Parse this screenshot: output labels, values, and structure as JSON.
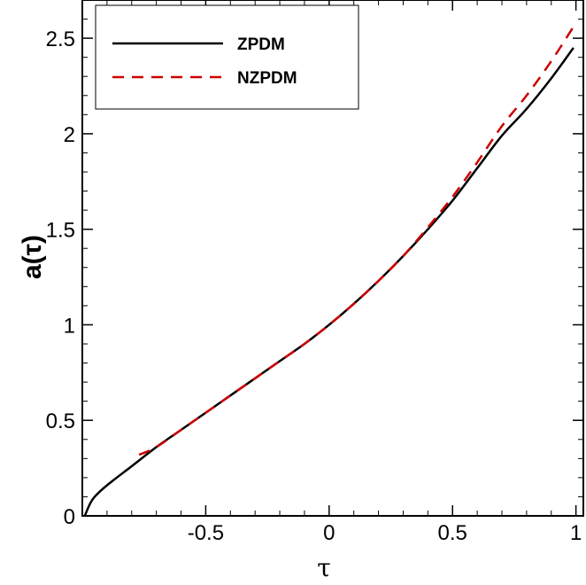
{
  "chart_data": {
    "type": "line",
    "xlabel": "τ",
    "ylabel": "a(τ)",
    "xlim": [
      -1,
      1.03
    ],
    "ylim": [
      0,
      2.7
    ],
    "grid": false,
    "legend_position": "top-left",
    "x_ticks": [
      {
        "value": -0.5,
        "label": "-0.5"
      },
      {
        "value": 0,
        "label": "0"
      },
      {
        "value": 0.5,
        "label": "0.5"
      },
      {
        "value": 1,
        "label": "1"
      }
    ],
    "y_ticks": [
      {
        "value": 0,
        "label": "0"
      },
      {
        "value": 0.5,
        "label": "0.5"
      },
      {
        "value": 1,
        "label": "1"
      },
      {
        "value": 1.5,
        "label": "1.5"
      },
      {
        "value": 2,
        "label": "2"
      },
      {
        "value": 2.5,
        "label": "2.5"
      }
    ],
    "series": [
      {
        "name": "ZPDM",
        "color": "#000000",
        "dash": "solid",
        "x": [
          -0.99,
          -0.97,
          -0.95,
          -0.9,
          -0.8,
          -0.7,
          -0.6,
          -0.5,
          -0.4,
          -0.3,
          -0.2,
          -0.1,
          0.0,
          0.1,
          0.2,
          0.3,
          0.4,
          0.5,
          0.6,
          0.7,
          0.8,
          0.9,
          0.99
        ],
        "y": [
          0.0,
          0.06,
          0.1,
          0.16,
          0.26,
          0.36,
          0.45,
          0.54,
          0.63,
          0.72,
          0.81,
          0.9,
          1.0,
          1.11,
          1.23,
          1.36,
          1.5,
          1.65,
          1.82,
          1.99,
          2.13,
          2.29,
          2.45
        ]
      },
      {
        "name": "NZPDM",
        "color": "#cc0000",
        "dash": "dashed",
        "x": [
          -0.77,
          -0.7,
          -0.6,
          -0.5,
          -0.4,
          -0.3,
          -0.2,
          -0.1,
          0.0,
          0.1,
          0.2,
          0.3,
          0.4,
          0.5,
          0.6,
          0.7,
          0.8,
          0.9,
          0.99
        ],
        "y": [
          0.32,
          0.36,
          0.45,
          0.54,
          0.63,
          0.72,
          0.81,
          0.9,
          1.0,
          1.11,
          1.23,
          1.36,
          1.51,
          1.67,
          1.85,
          2.04,
          2.2,
          2.38,
          2.56
        ]
      }
    ]
  }
}
